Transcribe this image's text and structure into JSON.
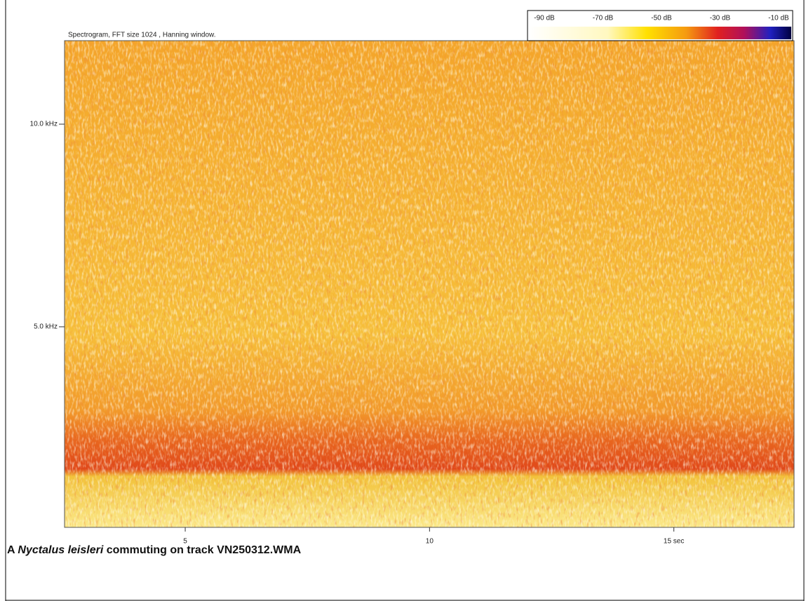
{
  "chart_data": {
    "type": "spectrogram",
    "title": "Spectrogram, FFT size 1024 , Hanning window.",
    "xlim": [
      2.53,
      17.46
    ],
    "xticks": [
      5,
      10,
      {
        "value": 15,
        "label": "15 sec"
      }
    ],
    "ylim": [
      0.05,
      12.06
    ],
    "yticks": [
      {
        "value": 5,
        "label": "5.0 kHz"
      },
      {
        "value": 10,
        "label": "10.0 kHz"
      }
    ],
    "colorbar_labels": [
      "-90 dB",
      "-70 dB",
      "-50 dB",
      "-30 dB",
      "-10 dB"
    ]
  },
  "caption": {
    "prefix": "A",
    "species": "Nyctalus leisleri",
    "suffix": "commuting on track VN250312.WMA"
  }
}
